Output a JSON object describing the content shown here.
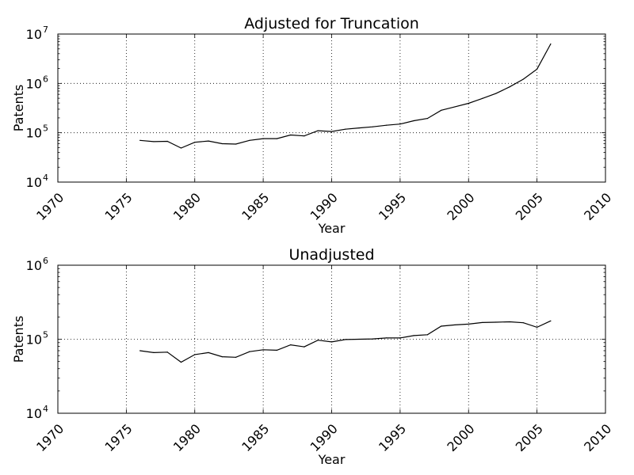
{
  "chart_data": [
    {
      "type": "line",
      "title": "Adjusted for Truncation",
      "xlabel": "Year",
      "ylabel": "Patents",
      "xlim": [
        1970,
        2010
      ],
      "ylim": [
        10000,
        10000000
      ],
      "yscale": "log",
      "grid": true,
      "xticks": [
        1970,
        1975,
        1980,
        1985,
        1990,
        1995,
        2000,
        2005,
        2010
      ],
      "yticks": [
        {
          "value": 10000,
          "base": "10",
          "exp": "4"
        },
        {
          "value": 100000,
          "base": "10",
          "exp": "5"
        },
        {
          "value": 1000000,
          "base": "10",
          "exp": "6"
        },
        {
          "value": 10000000,
          "base": "10",
          "exp": "7"
        }
      ],
      "series": [
        {
          "color": "#000000",
          "x": [
            1976,
            1977,
            1978,
            1979,
            1980,
            1981,
            1982,
            1983,
            1984,
            1985,
            1986,
            1987,
            1988,
            1989,
            1990,
            1991,
            1992,
            1993,
            1994,
            1995,
            1996,
            1997,
            1998,
            1999,
            2000,
            2001,
            2002,
            2003,
            2004,
            2005,
            2006
          ],
          "y": [
            70000,
            66000,
            67000,
            49000,
            64000,
            68000,
            60000,
            59000,
            70000,
            76000,
            76000,
            90000,
            86000,
            110000,
            106000,
            118000,
            125000,
            132000,
            142000,
            150000,
            175000,
            195000,
            285000,
            335000,
            395000,
            495000,
            625000,
            850000,
            1220000,
            1950000,
            6300000
          ]
        }
      ]
    },
    {
      "type": "line",
      "title": "Unadjusted",
      "xlabel": "Year",
      "ylabel": "Patents",
      "xlim": [
        1970,
        2010
      ],
      "ylim": [
        10000,
        1000000
      ],
      "yscale": "log",
      "grid": true,
      "xticks": [
        1970,
        1975,
        1980,
        1985,
        1990,
        1995,
        2000,
        2005,
        2010
      ],
      "yticks": [
        {
          "value": 10000,
          "base": "10",
          "exp": "4"
        },
        {
          "value": 100000,
          "base": "10",
          "exp": "5"
        },
        {
          "value": 1000000,
          "base": "10",
          "exp": "6"
        }
      ],
      "series": [
        {
          "color": "#000000",
          "x": [
            1976,
            1977,
            1978,
            1979,
            1980,
            1981,
            1982,
            1983,
            1984,
            1985,
            1986,
            1987,
            1988,
            1989,
            1990,
            1991,
            1992,
            1993,
            1994,
            1995,
            1996,
            1997,
            1998,
            1999,
            2000,
            2001,
            2002,
            2003,
            2004,
            2005,
            2006
          ],
          "y": [
            70000,
            66000,
            67000,
            49000,
            62000,
            66000,
            58000,
            57000,
            68000,
            72000,
            71000,
            84000,
            79000,
            97000,
            92000,
            99000,
            100000,
            101000,
            104000,
            104000,
            112000,
            115000,
            150000,
            156000,
            160000,
            168000,
            170000,
            172000,
            167000,
            145000,
            177000
          ]
        }
      ]
    }
  ]
}
